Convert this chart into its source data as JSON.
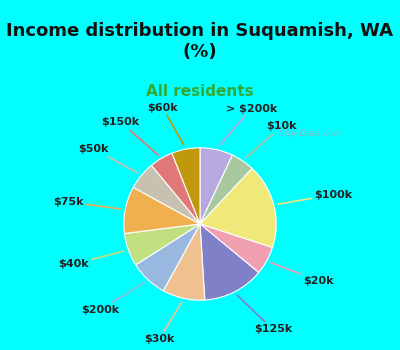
{
  "title": "Income distribution in Suquamish, WA\n(%)",
  "subtitle": "All residents",
  "bg_color": "#00FFFF",
  "chart_bg_color": "#d8ede0",
  "labels": [
    ">$200k",
    "$10k",
    "$100k",
    "$20k",
    "$125k",
    "$30k",
    "$200k",
    "$40k",
    "$75k",
    "$50k",
    "$150k",
    "$60k"
  ],
  "label_display": [
    "> $200k",
    "$10k",
    "$100k",
    "$20k",
    "$125k",
    "$30k",
    "$200k",
    "$40k",
    "$75k",
    "$50k",
    "$150k",
    "$60k"
  ],
  "values": [
    7,
    5,
    18,
    6,
    13,
    9,
    8,
    7,
    10,
    6,
    5,
    6
  ],
  "colors": [
    "#b8a8e0",
    "#a8c8a0",
    "#f0e878",
    "#f0a0b0",
    "#8080c8",
    "#f0c090",
    "#98b8e0",
    "#c0e080",
    "#f0b050",
    "#c8c0b0",
    "#e07878",
    "#c0980c"
  ],
  "title_fontsize": 13,
  "subtitle_fontsize": 11,
  "subtitle_color": "#33aa33",
  "label_fontsize": 8,
  "watermark": "  City-Data.com"
}
